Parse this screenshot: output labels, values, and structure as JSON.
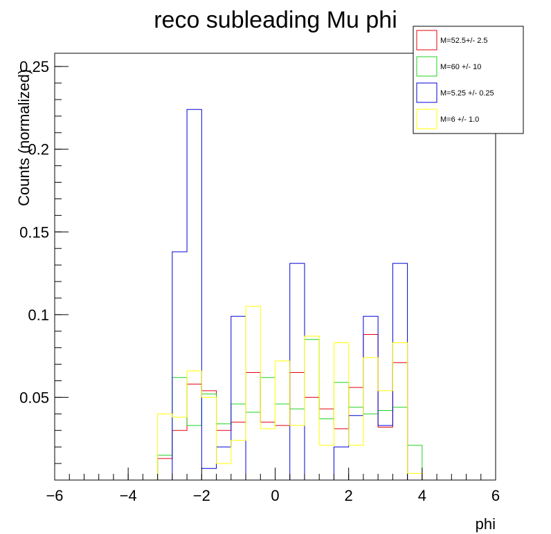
{
  "chart_data": {
    "type": "histogram",
    "title": "reco subleading Mu phi",
    "xlabel": "phi",
    "ylabel": "Counts (normalized)",
    "xlim": [
      -6,
      6
    ],
    "ylim": [
      0,
      0.258
    ],
    "grid": false,
    "legend_position": "top-right",
    "x_ticks": [
      -6,
      -4,
      -2,
      0,
      2,
      4,
      6
    ],
    "x_tick_labels": [
      "−6",
      "−4",
      "−2",
      "0",
      "2",
      "4",
      "6"
    ],
    "y_ticks": [
      0.05,
      0.1,
      0.15,
      0.2,
      0.25
    ],
    "y_tick_labels": [
      "0.05",
      "0.1",
      "0.15",
      "0.2",
      "0.25"
    ],
    "bin_edges": [
      -6,
      -5.6,
      -5.2,
      -4.8,
      -4.4,
      -4.0,
      -3.6,
      -3.2,
      -2.8,
      -2.4,
      -2.0,
      -1.6,
      -1.2,
      -0.8,
      -0.4,
      0,
      0.4,
      0.8,
      1.2,
      1.6,
      2.0,
      2.4,
      2.8,
      3.2,
      3.6,
      4.0,
      4.4,
      4.8,
      5.2,
      5.6,
      6
    ],
    "series": [
      {
        "name": "M=52.5+/- 2.5",
        "color": "#e3000b",
        "values": [
          0,
          0,
          0,
          0,
          0,
          0,
          0,
          0.013,
          0.03,
          0.058,
          0.054,
          0.03,
          0.035,
          0.065,
          0.035,
          0.033,
          0.065,
          0.05,
          0.043,
          0.031,
          0.056,
          0.088,
          0.032,
          0.071,
          0,
          0,
          0,
          0,
          0,
          0
        ]
      },
      {
        "name": "M=60 +/- 10",
        "color": "#1fd11f",
        "values": [
          0,
          0,
          0,
          0,
          0,
          0,
          0,
          0.015,
          0.062,
          0.033,
          0.052,
          0.034,
          0.046,
          0.041,
          0.062,
          0.046,
          0.043,
          0.085,
          0.037,
          0.059,
          0.044,
          0.04,
          0.042,
          0.044,
          0.021,
          0,
          0,
          0,
          0,
          0
        ]
      },
      {
        "name": "M=5.25 +/- 0.25",
        "color": "#0000d6",
        "values": [
          0,
          0,
          0,
          0,
          0,
          0,
          0,
          0,
          0.138,
          0.224,
          0.007,
          0.02,
          0.099,
          0,
          0,
          0,
          0.131,
          0,
          0,
          0.02,
          0.039,
          0.099,
          0.033,
          0.131,
          0,
          0,
          0,
          0,
          0,
          0
        ]
      },
      {
        "name": "M=6 +/- 1.0",
        "color": "#ffff00",
        "values": [
          0,
          0,
          0,
          0,
          0,
          0,
          0,
          0.04,
          0.038,
          0.066,
          0.05,
          0.01,
          0.024,
          0.105,
          0.031,
          0.072,
          0.033,
          0.087,
          0.021,
          0.083,
          0.021,
          0.074,
          0.054,
          0.083,
          0.004,
          0,
          0,
          0,
          0,
          0
        ]
      }
    ]
  }
}
